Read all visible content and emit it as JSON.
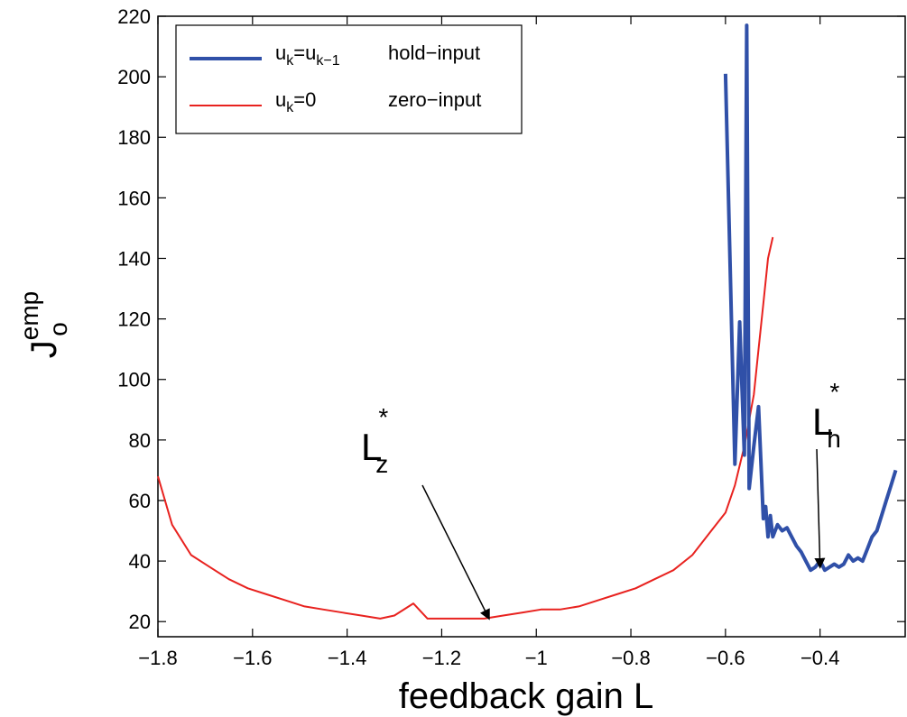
{
  "chart_data": {
    "type": "line",
    "xlabel": "feedback gain L",
    "ylabel_main": "J",
    "ylabel_sup": "emp",
    "ylabel_sub": "o",
    "xlim": [
      -1.8,
      -0.22
    ],
    "ylim": [
      15,
      220
    ],
    "xticks": [
      -1.8,
      -1.6,
      -1.4,
      -1.2,
      -1,
      -0.8,
      -0.6,
      -0.4
    ],
    "xtick_labels": [
      "−1.8",
      "−1.6",
      "−1.4",
      "−1.2",
      "−1",
      "−0.8",
      "−0.6",
      "−0.4"
    ],
    "yticks": [
      20,
      40,
      60,
      80,
      100,
      120,
      140,
      160,
      180,
      200,
      220
    ],
    "ytick_labels": [
      "20",
      "40",
      "60",
      "80",
      "100",
      "120",
      "140",
      "160",
      "180",
      "200",
      "220"
    ],
    "grid": false,
    "legend_position": "top-left",
    "series": [
      {
        "name": "hold-input",
        "legend_main": "u",
        "legend_sub1": "k",
        "legend_eq": "=u",
        "legend_sub2": "k−1",
        "legend_text": "hold−input",
        "color": "#3050a8",
        "x": [
          -0.6,
          -0.58,
          -0.57,
          -0.56,
          -0.555,
          -0.55,
          -0.54,
          -0.53,
          -0.52,
          -0.515,
          -0.51,
          -0.505,
          -0.5,
          -0.49,
          -0.48,
          -0.47,
          -0.46,
          -0.45,
          -0.44,
          -0.43,
          -0.42,
          -0.41,
          -0.4,
          -0.39,
          -0.38,
          -0.37,
          -0.36,
          -0.35,
          -0.34,
          -0.33,
          -0.32,
          -0.31,
          -0.3,
          -0.29,
          -0.28,
          -0.27,
          -0.26,
          -0.25,
          -0.24
        ],
        "y": [
          201,
          72,
          119,
          75,
          217,
          64,
          78,
          91,
          54,
          58,
          48,
          55,
          48,
          52,
          50,
          51,
          48,
          45,
          43,
          40,
          37,
          38,
          40,
          37,
          38,
          39,
          38,
          39,
          42,
          40,
          41,
          40,
          44,
          48,
          50,
          55,
          60,
          65,
          70
        ]
      },
      {
        "name": "zero-input",
        "legend_main": "u",
        "legend_sub1": "k",
        "legend_eq": "=0",
        "legend_text": "zero−input",
        "color": "#e8221f",
        "x": [
          -1.8,
          -1.77,
          -1.73,
          -1.69,
          -1.65,
          -1.61,
          -1.57,
          -1.53,
          -1.49,
          -1.45,
          -1.41,
          -1.37,
          -1.33,
          -1.3,
          -1.26,
          -1.23,
          -1.19,
          -1.15,
          -1.11,
          -1.07,
          -1.03,
          -0.99,
          -0.95,
          -0.91,
          -0.87,
          -0.83,
          -0.79,
          -0.75,
          -0.71,
          -0.67,
          -0.63,
          -0.6,
          -0.58,
          -0.56,
          -0.54,
          -0.53,
          -0.52,
          -0.51,
          -0.5
        ],
        "y": [
          68,
          52,
          42,
          38,
          34,
          31,
          29,
          27,
          25,
          24,
          23,
          22,
          21,
          22,
          26,
          21,
          21,
          21,
          21,
          22,
          23,
          24,
          24,
          25,
          27,
          29,
          31,
          34,
          37,
          42,
          50,
          56,
          65,
          78,
          95,
          110,
          125,
          140,
          147
        ]
      }
    ],
    "annotations": [
      {
        "letter": "L",
        "sub": "z",
        "star": "*",
        "tip_x": -1.1,
        "tip_y": 21
      },
      {
        "letter": "L",
        "sub": "h",
        "star": "*",
        "tip_x": -0.4,
        "tip_y": 38
      }
    ]
  }
}
